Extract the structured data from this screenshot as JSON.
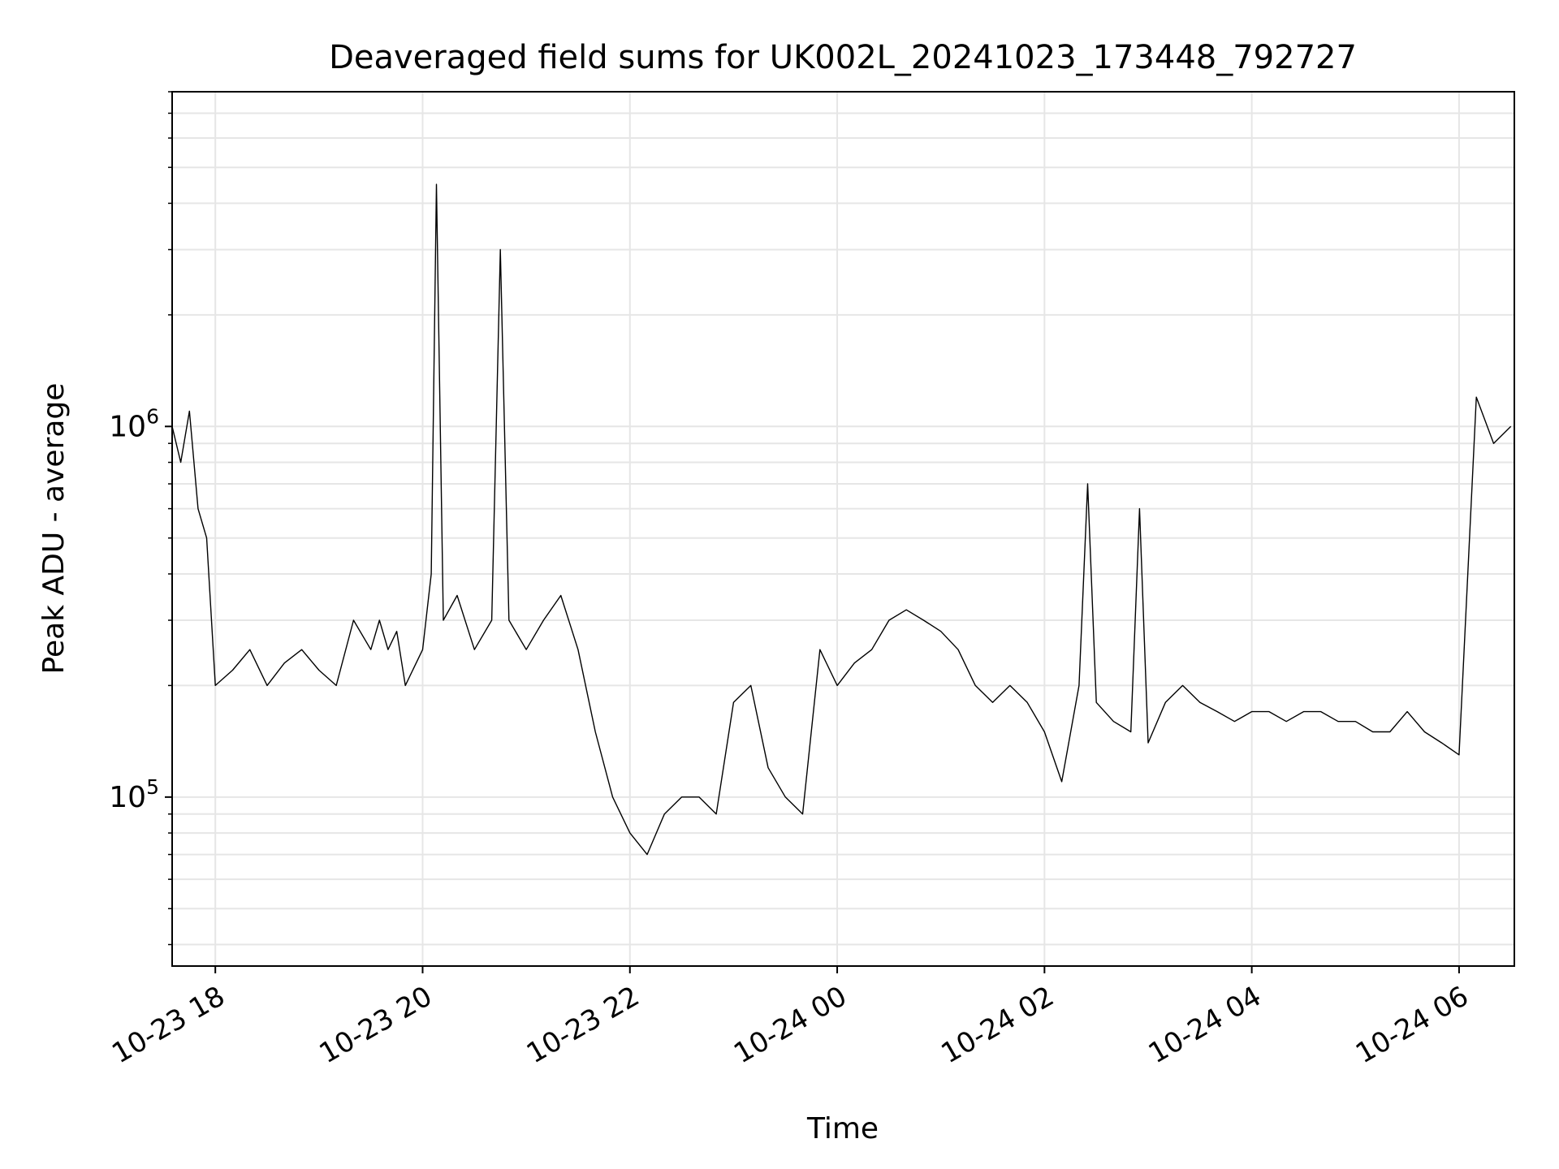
{
  "chart_data": {
    "type": "line",
    "title": "Deaveraged field sums for UK002L_20241023_173448_792727",
    "xlabel": "Time",
    "ylabel": "Peak ADU - average",
    "y_scale": "log",
    "ylim": [
      35000,
      8000000
    ],
    "xlim": [
      "2024-10-23 17:35",
      "2024-10-24 06:32"
    ],
    "x_ticks": [
      "10-23 18",
      "10-23 20",
      "10-23 22",
      "10-24 00",
      "10-24 02",
      "10-24 04",
      "10-24 06"
    ],
    "y_ticks": [
      {
        "base": "10",
        "exp": "5",
        "value": 100000
      },
      {
        "base": "10",
        "exp": "6",
        "value": 1000000
      }
    ],
    "grid": true,
    "line_color": "#000000",
    "grid_color": "#e6e6e6",
    "series": [
      {
        "x": [
          "2024-10-23 17:35",
          "2024-10-23 17:40",
          "2024-10-23 17:45",
          "2024-10-23 17:50",
          "2024-10-23 17:55",
          "2024-10-23 18:00",
          "2024-10-23 18:10",
          "2024-10-23 18:20",
          "2024-10-23 18:30",
          "2024-10-23 18:40",
          "2024-10-23 18:50",
          "2024-10-23 19:00",
          "2024-10-23 19:10",
          "2024-10-23 19:20",
          "2024-10-23 19:30",
          "2024-10-23 19:35",
          "2024-10-23 19:40",
          "2024-10-23 19:45",
          "2024-10-23 19:50",
          "2024-10-23 20:00",
          "2024-10-23 20:05",
          "2024-10-23 20:08",
          "2024-10-23 20:12",
          "2024-10-23 20:20",
          "2024-10-23 20:30",
          "2024-10-23 20:40",
          "2024-10-23 20:45",
          "2024-10-23 20:50",
          "2024-10-23 21:00",
          "2024-10-23 21:10",
          "2024-10-23 21:20",
          "2024-10-23 21:30",
          "2024-10-23 21:40",
          "2024-10-23 21:50",
          "2024-10-23 22:00",
          "2024-10-23 22:10",
          "2024-10-23 22:20",
          "2024-10-23 22:30",
          "2024-10-23 22:40",
          "2024-10-23 22:50",
          "2024-10-23 23:00",
          "2024-10-23 23:10",
          "2024-10-23 23:20",
          "2024-10-23 23:30",
          "2024-10-23 23:40",
          "2024-10-23 23:50",
          "2024-10-24 00:00",
          "2024-10-24 00:10",
          "2024-10-24 00:20",
          "2024-10-24 00:30",
          "2024-10-24 00:40",
          "2024-10-24 00:50",
          "2024-10-24 01:00",
          "2024-10-24 01:10",
          "2024-10-24 01:20",
          "2024-10-24 01:30",
          "2024-10-24 01:40",
          "2024-10-24 01:50",
          "2024-10-24 02:00",
          "2024-10-24 02:10",
          "2024-10-24 02:20",
          "2024-10-24 02:25",
          "2024-10-24 02:30",
          "2024-10-24 02:40",
          "2024-10-24 02:50",
          "2024-10-24 02:55",
          "2024-10-24 03:00",
          "2024-10-24 03:10",
          "2024-10-24 03:20",
          "2024-10-24 03:30",
          "2024-10-24 03:40",
          "2024-10-24 03:50",
          "2024-10-24 04:00",
          "2024-10-24 04:10",
          "2024-10-24 04:20",
          "2024-10-24 04:30",
          "2024-10-24 04:40",
          "2024-10-24 04:50",
          "2024-10-24 05:00",
          "2024-10-24 05:10",
          "2024-10-24 05:20",
          "2024-10-24 05:30",
          "2024-10-24 05:40",
          "2024-10-24 05:50",
          "2024-10-24 06:00",
          "2024-10-24 06:10",
          "2024-10-24 06:20",
          "2024-10-24 06:30"
        ],
        "y": [
          1000000,
          800000,
          1100000,
          600000,
          500000,
          200000,
          220000,
          250000,
          200000,
          230000,
          250000,
          220000,
          200000,
          300000,
          250000,
          300000,
          250000,
          280000,
          200000,
          250000,
          400000,
          4500000,
          300000,
          350000,
          250000,
          300000,
          3000000,
          300000,
          250000,
          300000,
          350000,
          250000,
          150000,
          100000,
          80000,
          70000,
          90000,
          100000,
          100000,
          90000,
          180000,
          200000,
          120000,
          100000,
          90000,
          250000,
          200000,
          230000,
          250000,
          300000,
          320000,
          300000,
          280000,
          250000,
          200000,
          180000,
          200000,
          180000,
          150000,
          110000,
          200000,
          700000,
          180000,
          160000,
          150000,
          600000,
          140000,
          180000,
          200000,
          180000,
          170000,
          160000,
          170000,
          170000,
          160000,
          170000,
          170000,
          160000,
          160000,
          150000,
          150000,
          170000,
          150000,
          140000,
          130000,
          1200000,
          900000,
          1000000
        ]
      }
    ]
  }
}
